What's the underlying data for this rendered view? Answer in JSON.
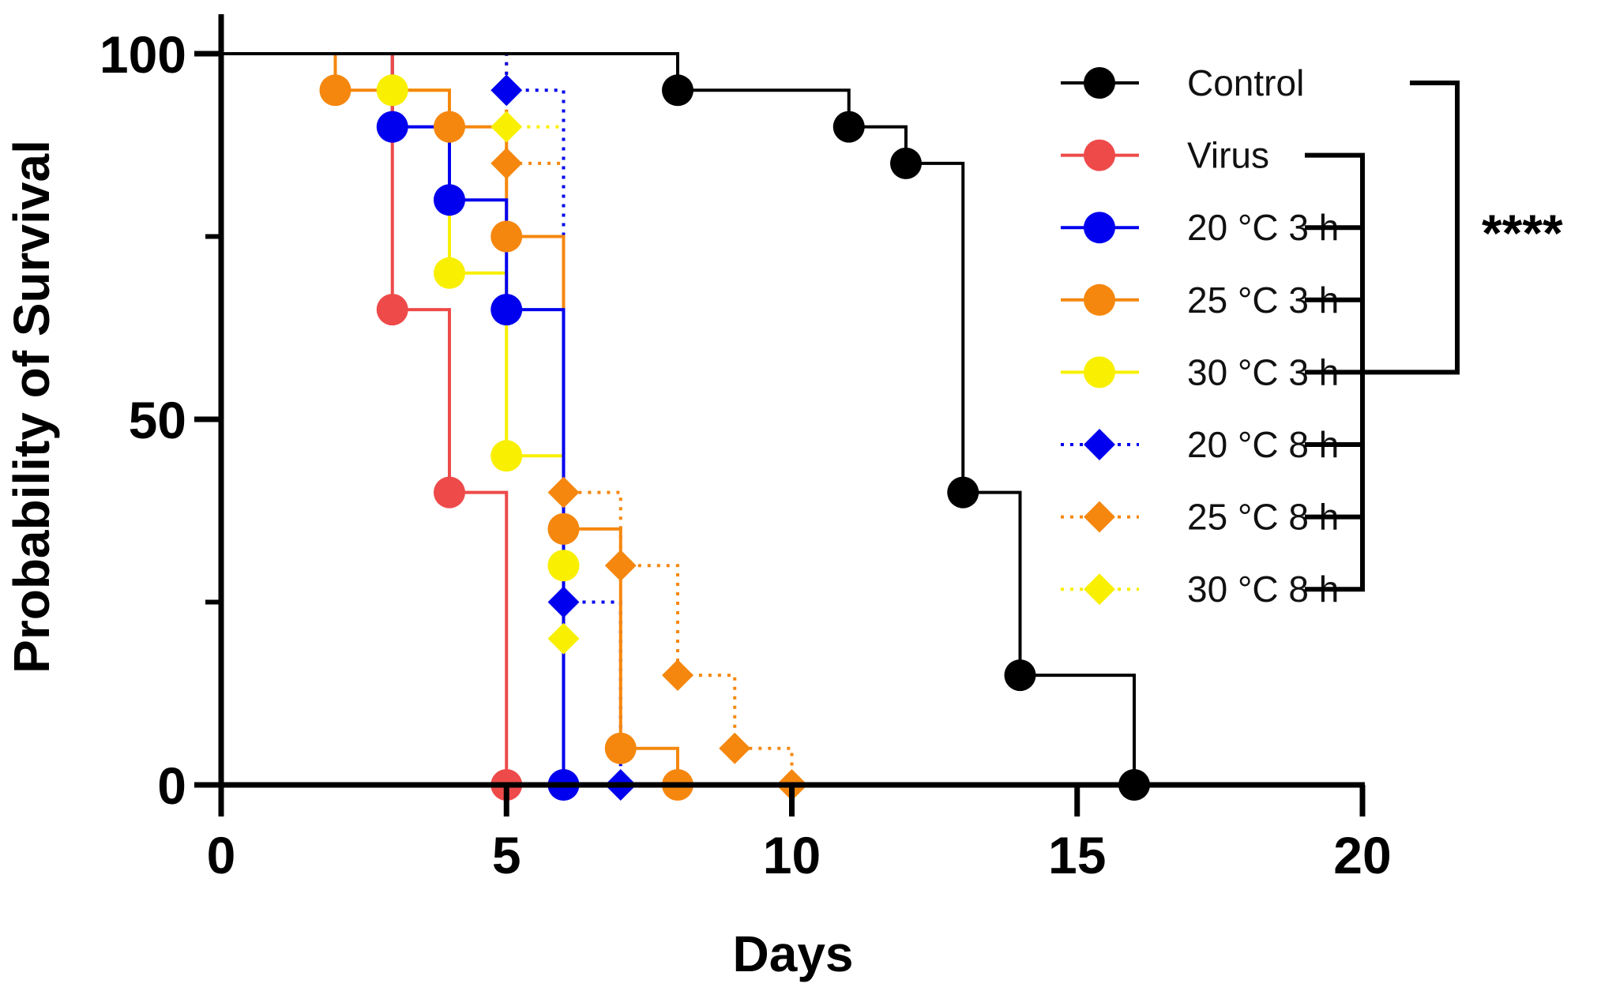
{
  "chart_data": {
    "type": "line",
    "subtype": "kaplan-meier survival",
    "title": "",
    "xlabel": "Days",
    "ylabel": "Probability of Survival",
    "xlim": [
      0,
      20
    ],
    "ylim": [
      0,
      100
    ],
    "x_ticks": [
      0,
      5,
      10,
      15,
      20
    ],
    "x_minor_ticks": [],
    "y_ticks": [
      0,
      50,
      100
    ],
    "y_minor_ticks": [
      25,
      75
    ],
    "grid": false,
    "legend_position": "right",
    "series": [
      {
        "name": "Control",
        "color": "#000000",
        "marker": "circle",
        "line_style": "solid",
        "x": [
          0,
          8,
          11,
          12,
          13,
          14,
          16
        ],
        "y": [
          100,
          95,
          90,
          85,
          40,
          15,
          0
        ]
      },
      {
        "name": "Virus",
        "color": "#ee4a4a",
        "marker": "circle",
        "line_style": "solid",
        "x": [
          0,
          3,
          4,
          5
        ],
        "y": [
          100,
          65,
          40,
          0
        ]
      },
      {
        "name": "20 °C 3 h",
        "color": "#0000ee",
        "marker": "circle",
        "line_style": "solid",
        "x": [
          0,
          3,
          4,
          5,
          6
        ],
        "y": [
          100,
          90,
          80,
          65,
          0
        ]
      },
      {
        "name": "25 °C 3 h",
        "color": "#f5870e",
        "marker": "circle",
        "line_style": "solid",
        "x": [
          0,
          2,
          4,
          5,
          6,
          7,
          8
        ],
        "y": [
          100,
          95,
          90,
          75,
          35,
          5,
          0
        ]
      },
      {
        "name": "30 °C 3 h",
        "color": "#f8f000",
        "marker": "circle",
        "line_style": "solid",
        "x": [
          0,
          3,
          4,
          5,
          6
        ],
        "y": [
          100,
          95,
          70,
          45,
          30
        ]
      },
      {
        "name": "20 °C 8 h",
        "color": "#0000ee",
        "marker": "diamond",
        "line_style": "dotted",
        "x": [
          0,
          5,
          6,
          7
        ],
        "y": [
          100,
          95,
          25,
          0
        ]
      },
      {
        "name": "25 °C 8 h",
        "color": "#f5870e",
        "marker": "diamond",
        "line_style": "dotted",
        "x": [
          0,
          5,
          6,
          7,
          8,
          9,
          10
        ],
        "y": [
          100,
          85,
          40,
          30,
          15,
          5,
          0
        ]
      },
      {
        "name": "30 °C 8 h",
        "color": "#f8f000",
        "marker": "diamond",
        "line_style": "dotted",
        "x": [
          0,
          5,
          6
        ],
        "y": [
          100,
          90,
          20
        ]
      }
    ],
    "annotations": [
      {
        "type": "significance-bracket",
        "label": "****",
        "compares": "Control vs all treatment groups"
      }
    ]
  }
}
